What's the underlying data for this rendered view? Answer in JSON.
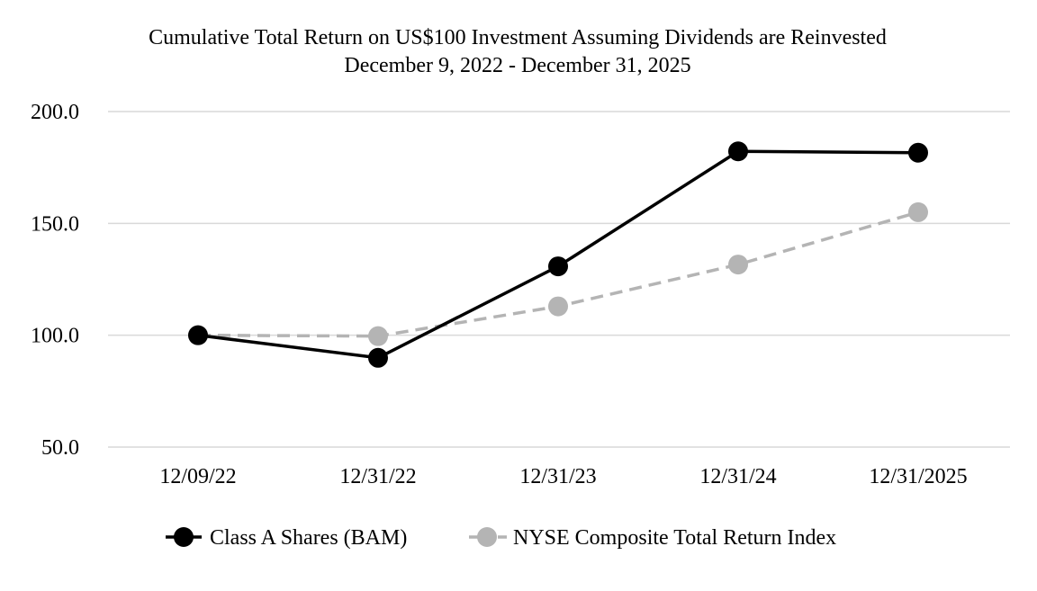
{
  "chart_data": {
    "type": "line",
    "title": "Cumulative Total Return on US$100 Investment Assuming Dividends are Reinvested",
    "subtitle": "December 9, 2022 - December 31, 2025",
    "xlabel": "",
    "ylabel": "",
    "categories": [
      "12/09/22",
      "12/31/22",
      "12/31/23",
      "12/31/24",
      "12/31/2025"
    ],
    "ylim": [
      50,
      200
    ],
    "yticks": [
      50,
      100,
      150,
      200
    ],
    "ytick_labels": [
      "50.0",
      "100.0",
      "150.0",
      "200.0"
    ],
    "grid": true,
    "legend_position": "bottom-center",
    "series": [
      {
        "name": "Class A Shares (BAM)",
        "values": [
          100.0,
          89.9,
          130.8,
          182.2,
          181.6
        ],
        "color": "#000000",
        "dash": "solid"
      },
      {
        "name": "NYSE Composite Total Return Index",
        "values": [
          100.0,
          99.6,
          112.9,
          131.6,
          155.0
        ],
        "color": "#b4b4b4",
        "dash": "dashed"
      }
    ]
  },
  "colors": {
    "grid": "#d9d9d9",
    "text": "#000000"
  }
}
